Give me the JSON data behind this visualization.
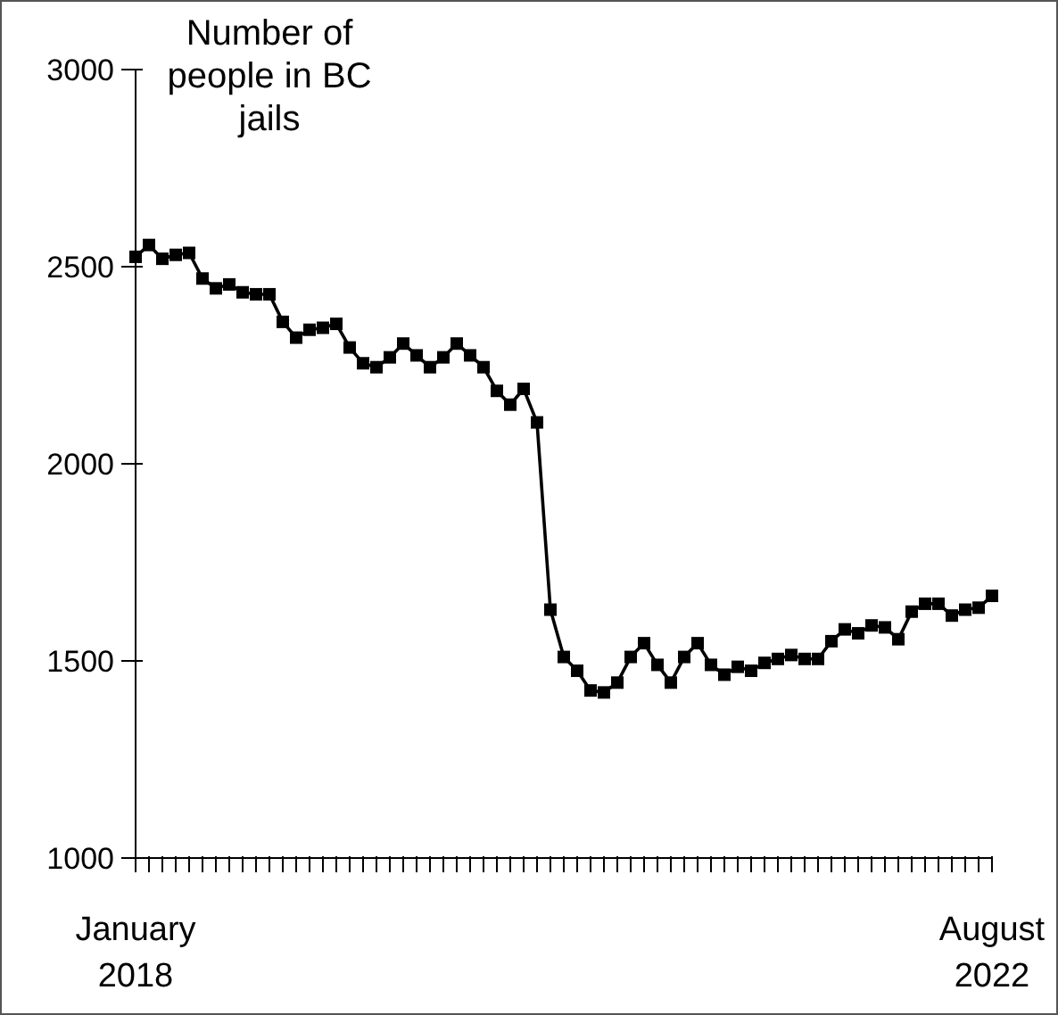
{
  "chart_data": {
    "type": "line",
    "title": "Number of people in BC jails",
    "categories": [
      "January 2018",
      null,
      null,
      null,
      null,
      null,
      null,
      null,
      null,
      null,
      null,
      null,
      null,
      null,
      null,
      null,
      null,
      null,
      null,
      null,
      null,
      null,
      null,
      null,
      null,
      null,
      null,
      null,
      null,
      null,
      null,
      null,
      null,
      null,
      null,
      null,
      null,
      null,
      null,
      null,
      null,
      null,
      null,
      null,
      null,
      null,
      null,
      null,
      null,
      null,
      null,
      null,
      null,
      null,
      null,
      null,
      null,
      null,
      null,
      null,
      null,
      null,
      null,
      null,
      "August 2022"
    ],
    "series": [
      {
        "color": "#000000",
        "values": [
          2525,
          2555,
          2520,
          2530,
          2535,
          2470,
          2445,
          2455,
          2435,
          2430,
          2430,
          2360,
          2320,
          2340,
          2345,
          2355,
          2295,
          2255,
          2245,
          2270,
          2305,
          2275,
          2245,
          2270,
          2305,
          2275,
          2245,
          2185,
          2150,
          2190,
          2105,
          1630,
          1510,
          1475,
          1425,
          1420,
          1445,
          1510,
          1545,
          1490,
          1445,
          1510,
          1545,
          1490,
          1465,
          1485,
          1475,
          1495,
          1505,
          1515,
          1505,
          1505,
          1550,
          1580,
          1570,
          1590,
          1585,
          1555,
          1625,
          1645,
          1645,
          1615,
          1630,
          1635,
          1665
        ]
      }
    ],
    "ylim": [
      1000,
      3000
    ],
    "yticks": [
      1000,
      1500,
      2000,
      2500,
      3000
    ],
    "grid": false,
    "legend": false,
    "marker": "square",
    "line_style": "solid"
  }
}
